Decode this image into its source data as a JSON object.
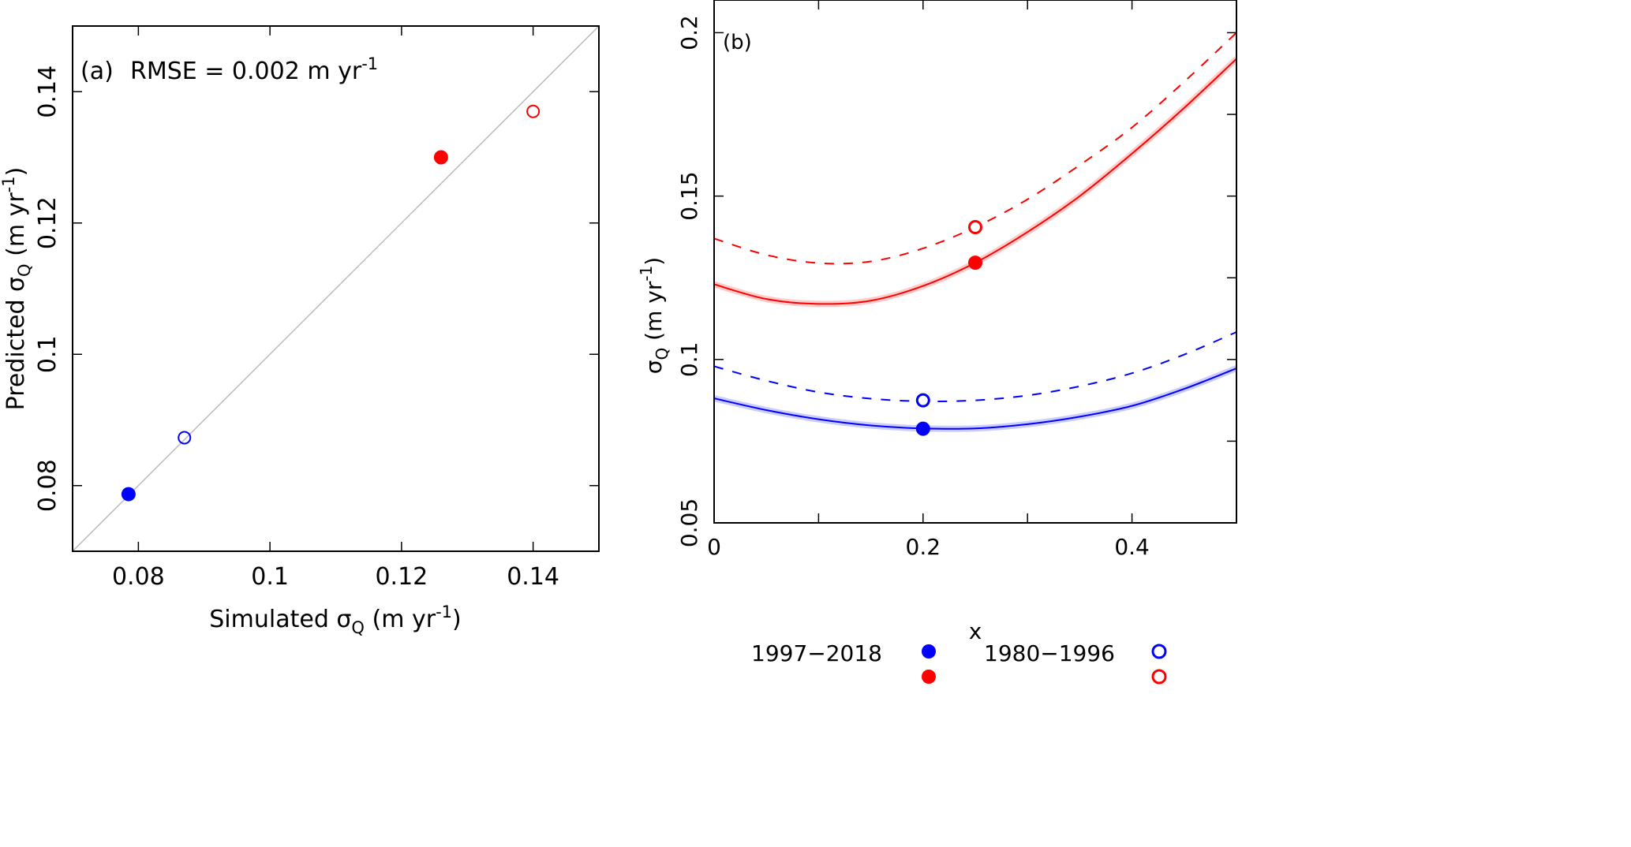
{
  "chart_data": [
    {
      "type": "scatter",
      "panel_label": "(a)",
      "annotation": "RMSE = 0.002 m yr",
      "annotation_sup": "-1",
      "xlabel": "Simulated σ",
      "ylabel": "Predicted σ",
      "label_sub": "Q",
      "unit_prefix": "(m yr",
      "unit_sup": "-1",
      "unit_suffix": ")",
      "xlim": [
        0.07,
        0.15
      ],
      "ylim": [
        0.07,
        0.15
      ],
      "xticks": [
        0.08,
        0.1,
        0.12,
        0.14
      ],
      "xtick_labels": [
        "0.08",
        "0.1",
        "0.12",
        "0.14"
      ],
      "yticks": [
        0.08,
        0.1,
        0.12,
        0.14
      ],
      "ytick_labels": [
        "0.08",
        "0.1",
        "0.12",
        "0.14"
      ],
      "identity_line": true,
      "identity_color": "#bbbbbb",
      "points": [
        {
          "x": 0.0785,
          "y": 0.0787,
          "color": "#0000ff",
          "filled": true
        },
        {
          "x": 0.087,
          "y": 0.0873,
          "color": "#0000ff",
          "filled": false
        },
        {
          "x": 0.126,
          "y": 0.13,
          "color": "#ff0000",
          "filled": true
        },
        {
          "x": 0.14,
          "y": 0.137,
          "color": "#ff0000",
          "filled": false
        }
      ]
    },
    {
      "type": "line",
      "panel_label": "(b)",
      "xlabel": "x",
      "ylabel": "σ",
      "label_sub": "Q",
      "unit_prefix": "(m yr",
      "unit_sup": "-1",
      "unit_suffix": ")",
      "xlim": [
        0,
        0.5
      ],
      "ylim": [
        0.05,
        0.21
      ],
      "xticks": [
        0,
        0.1,
        0.2,
        0.3,
        0.4,
        0.5
      ],
      "xtick_labels": [
        "0",
        "",
        "0.2",
        "",
        "0.4",
        ""
      ],
      "yticks": [
        0.05,
        0.1,
        0.15,
        0.2
      ],
      "ytick_labels": [
        "0.05",
        "0.1",
        "0.15",
        "0.2"
      ],
      "x": [
        0,
        0.05,
        0.1,
        0.15,
        0.2,
        0.25,
        0.3,
        0.35,
        0.4,
        0.45,
        0.5
      ],
      "series": [
        {
          "name": "red-solid",
          "color": "#ff0000",
          "dashed": false,
          "band": true,
          "values": [
            0.123,
            0.1185,
            0.117,
            0.118,
            0.1225,
            0.1296,
            0.139,
            0.15,
            0.163,
            0.177,
            0.192
          ]
        },
        {
          "name": "red-dashed",
          "color": "#ff0000",
          "dashed": true,
          "band": false,
          "values": [
            0.137,
            0.132,
            0.1295,
            0.13,
            0.134,
            0.1405,
            0.149,
            0.1595,
            0.171,
            0.185,
            0.2
          ]
        },
        {
          "name": "blue-solid",
          "color": "#0000ff",
          "dashed": false,
          "band": true,
          "values": [
            0.0881,
            0.0845,
            0.0817,
            0.0798,
            0.0789,
            0.0789,
            0.0802,
            0.0825,
            0.0858,
            0.091,
            0.0973
          ]
        },
        {
          "name": "blue-dashed",
          "color": "#0000ff",
          "dashed": true,
          "band": false,
          "values": [
            0.0979,
            0.0935,
            0.09,
            0.088,
            0.0872,
            0.0875,
            0.089,
            0.0918,
            0.0958,
            0.1015,
            0.1084
          ]
        }
      ],
      "points": [
        {
          "x": 0.2,
          "y": 0.0788,
          "color": "#0000ff",
          "filled": true
        },
        {
          "x": 0.2,
          "y": 0.0875,
          "color": "#0000ff",
          "filled": false
        },
        {
          "x": 0.25,
          "y": 0.1296,
          "color": "#ff0000",
          "filled": true
        },
        {
          "x": 0.25,
          "y": 0.1405,
          "color": "#ff0000",
          "filled": false
        }
      ],
      "legend": {
        "placement": "bottom",
        "entries": [
          {
            "label": "1997−2018",
            "filled": true
          },
          {
            "label": "1980−1996",
            "filled": false
          }
        ],
        "colors": [
          "#0000ff",
          "#ff0000"
        ]
      }
    }
  ]
}
